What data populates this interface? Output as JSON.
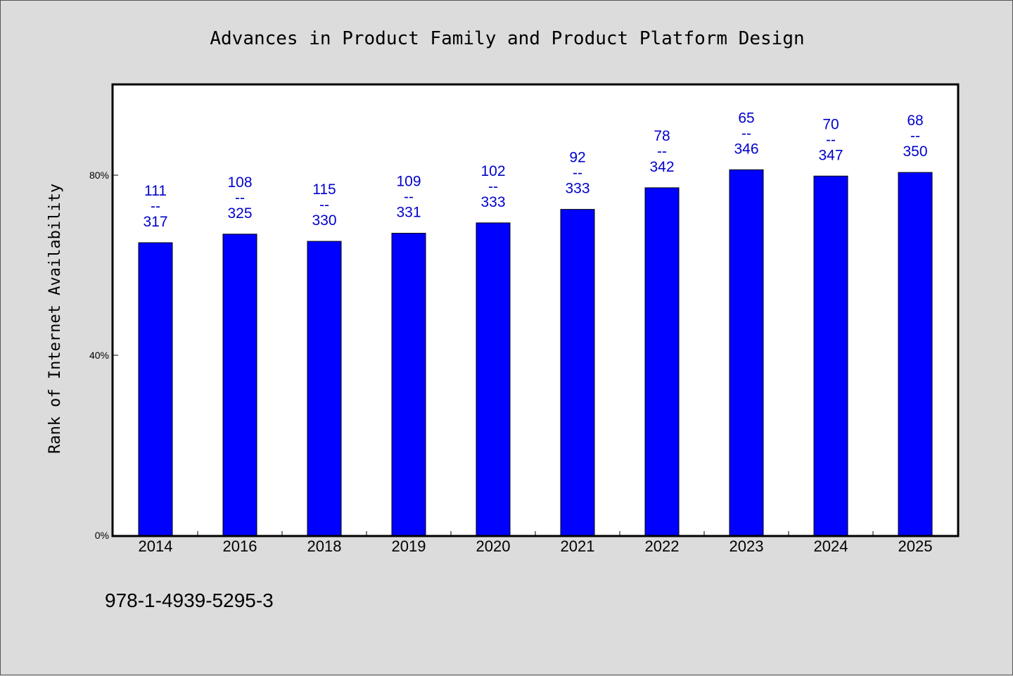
{
  "chart_data": {
    "type": "bar",
    "title": "Advances in Product Family and Product Platform Design",
    "xlabel": "",
    "ylabel": "Rank of Internet Availability",
    "categories": [
      "2014",
      "2016",
      "2018",
      "2019",
      "2020",
      "2021",
      "2022",
      "2023",
      "2024",
      "2025"
    ],
    "values": [
      65.0,
      66.9,
      65.3,
      67.1,
      69.4,
      72.4,
      77.2,
      81.2,
      79.8,
      80.6
    ],
    "bar_labels": [
      {
        "top": "111",
        "sep": "--",
        "bottom": "317"
      },
      {
        "top": "108",
        "sep": "--",
        "bottom": "325"
      },
      {
        "top": "115",
        "sep": "--",
        "bottom": "330"
      },
      {
        "top": "109",
        "sep": "--",
        "bottom": "331"
      },
      {
        "top": "102",
        "sep": "--",
        "bottom": "333"
      },
      {
        "top": "92",
        "sep": "--",
        "bottom": "333"
      },
      {
        "top": "78",
        "sep": "--",
        "bottom": "342"
      },
      {
        "top": "65",
        "sep": "--",
        "bottom": "346"
      },
      {
        "top": "70",
        "sep": "--",
        "bottom": "347"
      },
      {
        "top": "68",
        "sep": "--",
        "bottom": "350"
      }
    ],
    "yticks": [
      {
        "value": 0,
        "label": "0%"
      },
      {
        "value": 40,
        "label": "40%"
      },
      {
        "value": 80,
        "label": "80%"
      }
    ],
    "ylim": [
      0,
      100
    ],
    "grid": false,
    "bar_color": "#0000ff",
    "label_color": "#0000cc",
    "background": "#dcdcdc",
    "plot_background": "#ffffff"
  },
  "footer": {
    "text": "978-1-4939-5295-3"
  }
}
